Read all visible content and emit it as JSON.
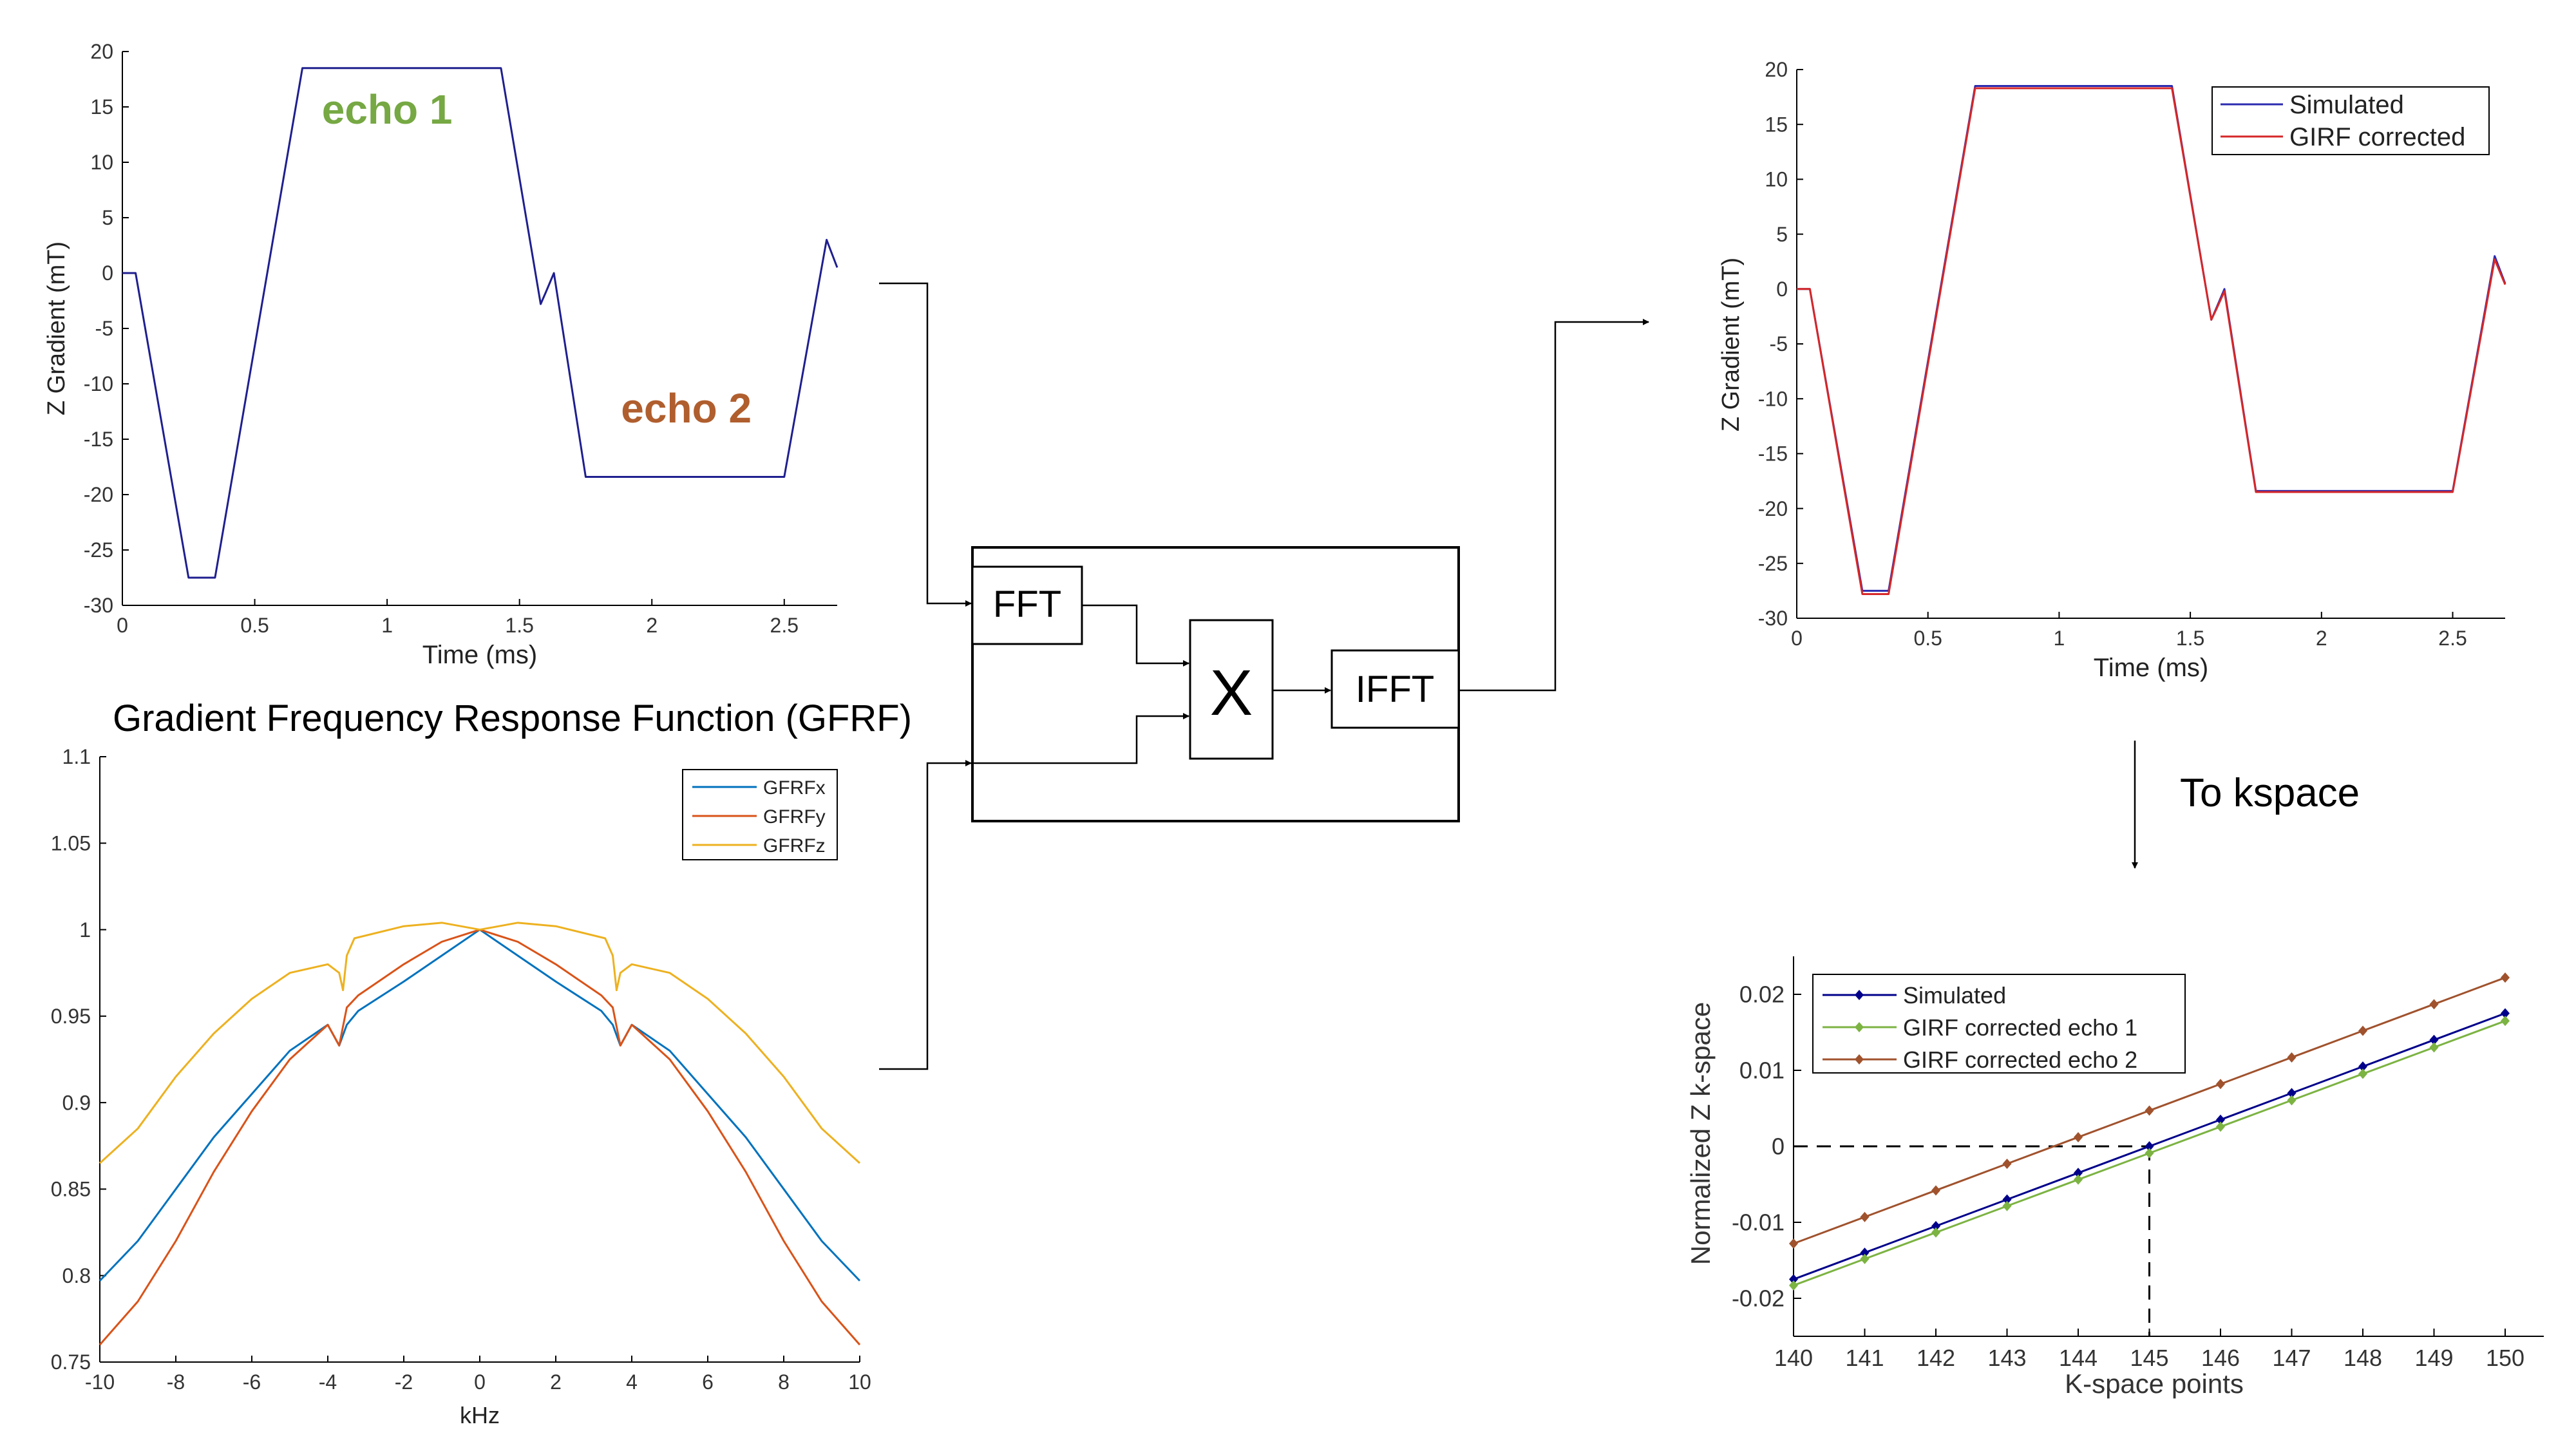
{
  "chart_data": [
    {
      "type": "line",
      "id": "input",
      "xlabel": "Time (ms)",
      "ylabel": "Z Gradient (mT)",
      "xlim": [
        0,
        2.7
      ],
      "ylim": [
        -30,
        20
      ],
      "xticks": [
        0,
        0.5,
        1,
        1.5,
        2,
        2.5
      ],
      "yticks": [
        -30,
        -25,
        -20,
        -15,
        -10,
        -5,
        0,
        5,
        10,
        15,
        20
      ],
      "grid": false,
      "annotations": [
        {
          "text": "echo 1",
          "x": 1.0,
          "y": 13.5,
          "color": "#76a843"
        },
        {
          "text": "echo 2",
          "x": 2.13,
          "y": -13.5,
          "color": "#b05e2e"
        }
      ],
      "series": [
        {
          "color": "#1f1f8f",
          "x": [
            0,
            0.05,
            0.25,
            0.35,
            0.68,
            1.43,
            1.58,
            1.6,
            1.63,
            1.75,
            2.5,
            2.66,
            2.7
          ],
          "y": [
            0,
            0,
            -27.5,
            -27.5,
            18.5,
            18.5,
            -2.8,
            -1.7,
            0,
            -18.4,
            -18.4,
            3,
            0.5
          ]
        }
      ]
    },
    {
      "type": "line",
      "id": "gfrf",
      "title": "Gradient Frequency Response Function (GFRF)",
      "xlabel": "kHz",
      "ylabel": "",
      "xlim": [
        -10,
        10
      ],
      "ylim": [
        0.75,
        1.1
      ],
      "xticks": [
        -10,
        -8,
        -6,
        -4,
        -2,
        0,
        2,
        4,
        6,
        8,
        10
      ],
      "yticks": [
        0.75,
        0.8,
        0.85,
        0.9,
        0.95,
        1,
        1.05,
        1.1
      ],
      "grid": false,
      "legend": "top-right",
      "series": [
        {
          "name": "GFRFx",
          "color": "#0072bd",
          "x": [
            -10,
            -9,
            -8,
            -7,
            -6,
            -5,
            -4,
            -3.7,
            -3.5,
            -3.2,
            -2,
            -1,
            0,
            1,
            2,
            3.2,
            3.5,
            3.7,
            4,
            5,
            6,
            7,
            8,
            9,
            10
          ],
          "y": [
            0.797,
            0.82,
            0.85,
            0.88,
            0.905,
            0.93,
            0.945,
            0.933,
            0.945,
            0.953,
            0.97,
            0.985,
            1.0,
            0.985,
            0.97,
            0.953,
            0.945,
            0.933,
            0.945,
            0.93,
            0.905,
            0.88,
            0.85,
            0.82,
            0.797
          ]
        },
        {
          "name": "GFRFy",
          "color": "#d95319",
          "x": [
            -10,
            -9,
            -8,
            -7,
            -6,
            -5,
            -4,
            -3.7,
            -3.5,
            -3.2,
            -2,
            -1,
            0,
            1,
            2,
            3.2,
            3.5,
            3.7,
            4,
            5,
            6,
            7,
            8,
            9,
            10
          ],
          "y": [
            0.76,
            0.785,
            0.82,
            0.86,
            0.895,
            0.925,
            0.945,
            0.933,
            0.955,
            0.962,
            0.98,
            0.993,
            1.0,
            0.993,
            0.98,
            0.962,
            0.955,
            0.933,
            0.945,
            0.925,
            0.895,
            0.86,
            0.82,
            0.785,
            0.76
          ]
        },
        {
          "name": "GFRFz",
          "color": "#edb120",
          "x": [
            -10,
            -9,
            -8,
            -7,
            -6,
            -5,
            -4,
            -3.7,
            -3.6,
            -3.5,
            -3.3,
            -2,
            -1,
            0,
            1,
            2,
            3.3,
            3.5,
            3.6,
            3.7,
            4,
            5,
            6,
            7,
            8,
            9,
            10
          ],
          "y": [
            0.865,
            0.885,
            0.915,
            0.94,
            0.96,
            0.975,
            0.98,
            0.975,
            0.965,
            0.985,
            0.995,
            1.002,
            1.004,
            1.0,
            1.004,
            1.002,
            0.995,
            0.985,
            0.965,
            0.975,
            0.98,
            0.975,
            0.96,
            0.94,
            0.915,
            0.885,
            0.865
          ]
        }
      ]
    },
    {
      "type": "line",
      "id": "output",
      "xlabel": "Time (ms)",
      "ylabel": "Z Gradient (mT)",
      "xlim": [
        0,
        2.7
      ],
      "ylim": [
        -30,
        20
      ],
      "xticks": [
        0,
        0.5,
        1,
        1.5,
        2,
        2.5
      ],
      "yticks": [
        -30,
        -25,
        -20,
        -15,
        -10,
        -5,
        0,
        5,
        10,
        15,
        20
      ],
      "grid": false,
      "legend": "top-right",
      "series": [
        {
          "name": "Simulated",
          "color": "#2b2bb0",
          "x": [
            0,
            0.05,
            0.25,
            0.35,
            0.68,
            1.43,
            1.58,
            1.6,
            1.63,
            1.75,
            2.5,
            2.66,
            2.7
          ],
          "y": [
            0,
            0,
            -27.5,
            -27.5,
            18.5,
            18.5,
            -2.8,
            -1.7,
            0,
            -18.4,
            -18.4,
            3,
            0.5
          ]
        },
        {
          "name": "GIRF corrected",
          "color": "#d62728",
          "x": [
            0,
            0.05,
            0.25,
            0.35,
            0.68,
            1.43,
            1.58,
            1.6,
            1.63,
            1.75,
            2.5,
            2.66,
            2.7
          ],
          "y": [
            0,
            0,
            -27.8,
            -27.8,
            18.3,
            18.3,
            -2.8,
            -1.8,
            -0.2,
            -18.5,
            -18.5,
            2.7,
            0.4
          ]
        }
      ]
    },
    {
      "type": "line",
      "id": "kspace",
      "xlabel": "K-space points",
      "ylabel": "Normalized Z k-space",
      "xlim": [
        140,
        150
      ],
      "ylim": [
        -0.025,
        0.025
      ],
      "xticks": [
        140,
        141,
        142,
        143,
        144,
        145,
        146,
        147,
        148,
        149,
        150
      ],
      "yticks": [
        -0.02,
        -0.01,
        0,
        0.01,
        0.02
      ],
      "ytick_labels": [
        "-0.02",
        "-0.01",
        "0",
        "0.01",
        "0.02"
      ],
      "grid": false,
      "legend": "top-left",
      "guide": {
        "x": 145,
        "y": 0
      },
      "series": [
        {
          "name": "Simulated",
          "color": "#00008b",
          "start": -0.0175,
          "end": 0.0175,
          "x0": 140,
          "x1": 150
        },
        {
          "name": "GIRF corrected echo 1",
          "color": "#7cb342",
          "start": -0.0183,
          "end": 0.0165,
          "x0": 140,
          "x1": 150
        },
        {
          "name": "GIRF corrected echo 2",
          "color": "#a0522d",
          "start": -0.0128,
          "end": 0.0222,
          "x0": 140,
          "x1": 150
        }
      ]
    }
  ],
  "flow": {
    "fft_label": "FFT",
    "multiply_label": "X",
    "ifft_label": "IFFT",
    "to_kspace_label": "To kspace"
  }
}
